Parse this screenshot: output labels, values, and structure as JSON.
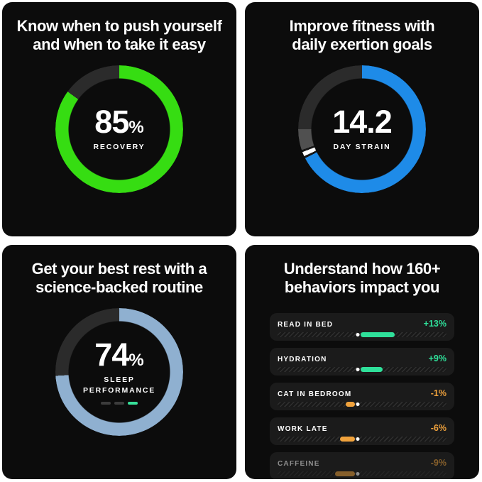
{
  "page": {
    "background_color": "#FFFFFF",
    "card_background_color": "#0C0C0C"
  },
  "cards": {
    "recovery": {
      "heading_line1": "Know when to push yourself",
      "heading_line2": "and when to take it easy",
      "ring": {
        "value": "85",
        "unit": "%",
        "label": "RECOVERY",
        "percent": 85,
        "fill_color": "#36DD12",
        "track_color": "#2B2B2B",
        "segments": [
          {
            "color": "#36DD12",
            "from": 0,
            "to": 306
          },
          {
            "color": "#2B2B2B",
            "from": 306,
            "to": 360
          }
        ]
      }
    },
    "strain": {
      "heading_line1": "Improve fitness with",
      "heading_line2": "daily exertion goals",
      "ring": {
        "value": "14.2",
        "unit": "",
        "label": "DAY STRAIN",
        "fill_color": "#1E8BE8",
        "track_color": "#2B2B2B",
        "goal_tick_color": "#FFFFFF",
        "goal_zone_color": "#505050",
        "segments": [
          {
            "color": "#1E8BE8",
            "from": 0,
            "to": 243
          },
          {
            "color": "#161616",
            "from": 243,
            "to": 245
          },
          {
            "color": "#FFFFFF",
            "from": 245,
            "to": 249
          },
          {
            "color": "#161616",
            "from": 249,
            "to": 251
          },
          {
            "color": "#505050",
            "from": 251,
            "to": 270
          },
          {
            "color": "#2B2B2B",
            "from": 270,
            "to": 360
          }
        ]
      }
    },
    "sleep": {
      "heading_line1": "Get your best rest with a",
      "heading_line2": "science-backed routine",
      "ring": {
        "value": "74",
        "unit": "%",
        "label": "SLEEP PERFORMANCE",
        "percent": 74,
        "fill_color": "#8FB0D0",
        "track_color": "#2B2B2B",
        "segments": [
          {
            "color": "#8FB0D0",
            "from": 0,
            "to": 266.5
          },
          {
            "color": "#2B2B2B",
            "from": 266.5,
            "to": 360
          }
        ]
      },
      "dash_colors": [
        "#3C3C3C",
        "#3C3C3C",
        "#37DF99"
      ]
    },
    "behaviors": {
      "heading_line1": "Understand how 160+",
      "heading_line2": "behaviors impact you",
      "positive_color": "#2FE09A",
      "negative_color": "#F0A23C",
      "rows": [
        {
          "label": "READ IN BED",
          "value": "+13%",
          "direction": "positive",
          "bar_pct": 20,
          "dimmed": false
        },
        {
          "label": "HYDRATION",
          "value": "+9%",
          "direction": "positive",
          "bar_pct": 13,
          "dimmed": false
        },
        {
          "label": "CAT IN BEDROOM",
          "value": "-1%",
          "direction": "negative",
          "bar_pct": 5.5,
          "dimmed": false
        },
        {
          "label": "WORK LATE",
          "value": "-6%",
          "direction": "negative",
          "bar_pct": 9,
          "dimmed": false
        },
        {
          "label": "CAFFEINE",
          "value": "-9%",
          "direction": "negative",
          "bar_pct": 12,
          "dimmed": true
        }
      ]
    }
  }
}
